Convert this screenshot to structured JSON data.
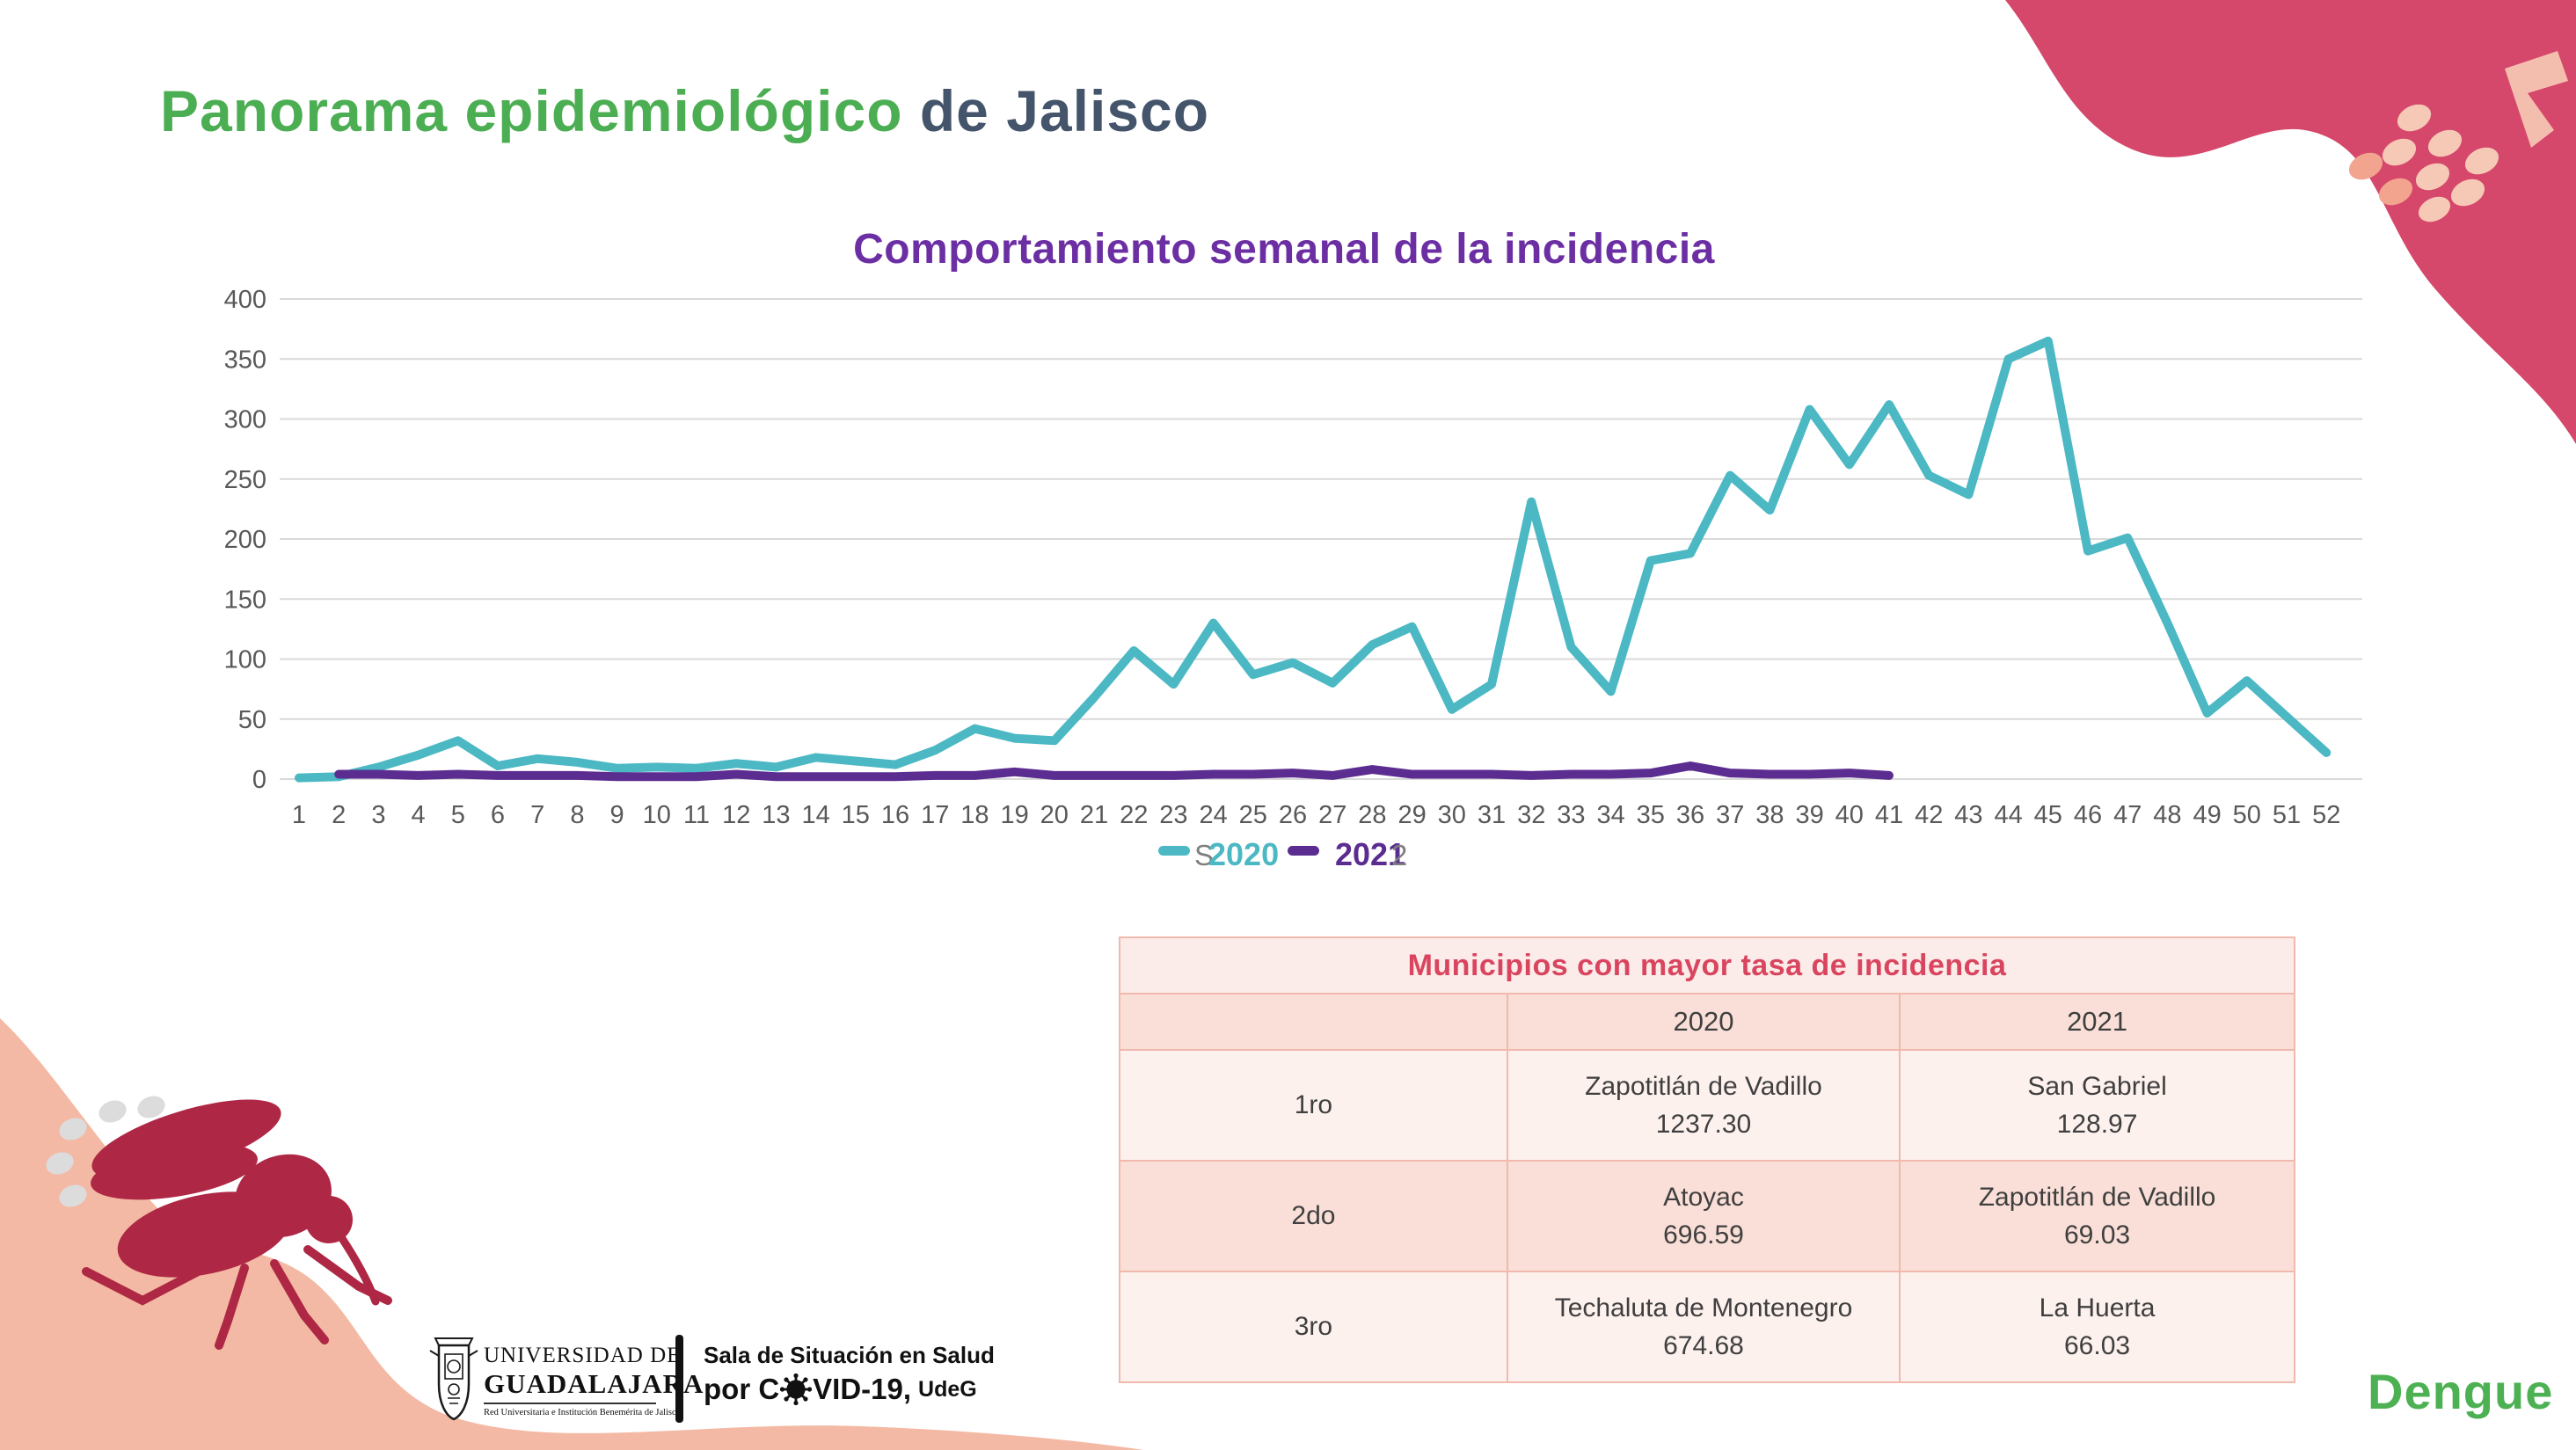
{
  "slide": {
    "title_green": "Panorama epidemiológico",
    "title_dark": " de Jalisco",
    "footer_tag": "Dengue"
  },
  "chart": {
    "title": "Comportamiento semanal de la incidencia",
    "legend": {
      "artifact_left": "S",
      "artifact_right": "2"
    }
  },
  "chart_data": {
    "type": "line",
    "title": "Comportamiento semanal de la incidencia",
    "xlabel": "",
    "ylabel": "",
    "ylim": [
      0,
      400
    ],
    "ytick_step": 50,
    "grid": true,
    "legend_position": "bottom",
    "x": [
      1,
      2,
      3,
      4,
      5,
      6,
      7,
      8,
      9,
      10,
      11,
      12,
      13,
      14,
      15,
      16,
      17,
      18,
      19,
      20,
      21,
      22,
      23,
      24,
      25,
      26,
      27,
      28,
      29,
      30,
      31,
      32,
      33,
      34,
      35,
      36,
      37,
      38,
      39,
      40,
      41,
      42,
      43,
      44,
      45,
      46,
      47,
      48,
      49,
      50,
      51,
      52
    ],
    "series": [
      {
        "name": "2020",
        "color": "#4BB8C4",
        "values": [
          1,
          2,
          10,
          20,
          32,
          11,
          17,
          14,
          9,
          10,
          9,
          13,
          10,
          18,
          15,
          12,
          24,
          42,
          34,
          32,
          68,
          107,
          79,
          130,
          87,
          97,
          80,
          112,
          127,
          58,
          79,
          231,
          110,
          73,
          182,
          188,
          253,
          224,
          308,
          262,
          312,
          253,
          237,
          350,
          365,
          190,
          201,
          130,
          55,
          82,
          52,
          22
        ]
      },
      {
        "name": "2021",
        "color": "#5C2D91",
        "values": [
          null,
          4,
          4,
          3,
          4,
          3,
          3,
          3,
          2,
          2,
          2,
          4,
          2,
          2,
          2,
          2,
          3,
          3,
          6,
          3,
          3,
          3,
          3,
          4,
          4,
          5,
          3,
          8,
          4,
          4,
          4,
          3,
          4,
          4,
          5,
          11,
          5,
          4,
          4,
          5,
          3,
          null,
          null,
          null,
          null,
          null,
          null,
          null,
          null,
          null,
          null,
          null
        ]
      }
    ]
  },
  "table": {
    "title": "Municipios con mayor tasa de incidencia",
    "columns": [
      "",
      "2020",
      "2021"
    ],
    "rows": [
      {
        "rank": "1ro",
        "y2020_name": "Zapotitlán de Vadillo",
        "y2020_value": "1237.30",
        "y2021_name": "San Gabriel",
        "y2021_value": "128.97"
      },
      {
        "rank": "2do",
        "y2020_name": "Atoyac",
        "y2020_value": "696.59",
        "y2021_name": "Zapotitlán de Vadillo",
        "y2021_value": "69.03"
      },
      {
        "rank": "3ro",
        "y2020_name": "Techaluta de Montenegro",
        "y2020_value": "674.68",
        "y2021_name": "La Huerta",
        "y2021_value": "66.03"
      }
    ]
  },
  "footer": {
    "university_line1": "UNIVERSIDAD DE",
    "university_line2": "GUADALAJARA",
    "university_sub": "Red Universitaria e Institución Benemérita de Jalisco",
    "sala_line1": "Sala de Situación en Salud",
    "sala_por": "por C",
    "sala_covid_suffix": "VID-19,",
    "sala_udeg": "UdeG"
  },
  "colors": {
    "accent_green": "#4CAE52",
    "accent_slate": "#44546A",
    "chart_title_purple": "#6C2FA3",
    "series_2020": "#4BB8C4",
    "series_2021": "#5C2D91",
    "table_accent": "#D9455F",
    "blob_crimson": "#D5476B",
    "blob_peach": "#F4B9A4",
    "dot_peach": "#F6C8B6",
    "dot_salmon": "#F2A48F",
    "mosquito_red": "#AE2744",
    "tick_gray": "#595959"
  }
}
